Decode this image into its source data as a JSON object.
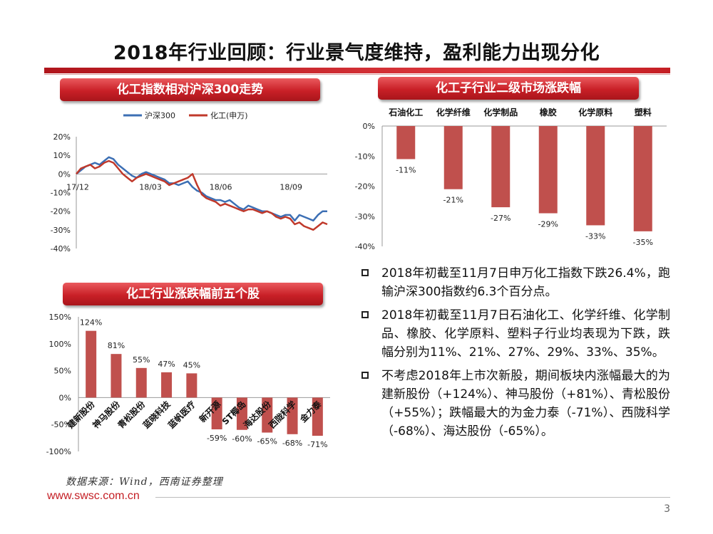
{
  "title": "2018年行业回顾：行业景气度维持，盈利能力出现分化",
  "colors": {
    "accent": "#c41e24",
    "hs300": "#3c6fb4",
    "chem": "#c0392b",
    "bar": "#c0504d"
  },
  "panels": {
    "index_title": "化工指数相对沪深300走势",
    "sub_title": "化工子行业二级市场涨跌幅",
    "top5_title": "化工行业涨跌幅前五个股"
  },
  "chart_data": [
    {
      "type": "line",
      "title": "化工指数相对沪深300走势",
      "legend": [
        "沪深300",
        "化工(申万)"
      ],
      "legend_position": "top",
      "y_ticks": [
        "20%",
        "10%",
        "0%",
        "-10%",
        "-20%",
        "-30%",
        "-40%"
      ],
      "x_ticks": [
        "17/12",
        "18/03",
        "18/06",
        "18/09"
      ],
      "ylim": [
        -40,
        20
      ],
      "series": [
        {
          "name": "沪深300",
          "values": [
            0,
            2,
            4,
            5,
            6,
            5,
            7,
            9,
            8,
            5,
            3,
            1,
            -1,
            -2,
            0,
            1,
            0,
            -1,
            -2,
            -3,
            -5,
            -5,
            -6,
            -5,
            -4,
            -7,
            -9,
            -10,
            -12,
            -13,
            -14,
            -14,
            -15,
            -14,
            -16,
            -18,
            -19,
            -17,
            -18,
            -19,
            -20,
            -20,
            -21,
            -22,
            -23,
            -22,
            -22,
            -25,
            -22,
            -23,
            -24,
            -25,
            -22,
            -20,
            -20
          ]
        },
        {
          "name": "化工(申万)",
          "values": [
            0,
            3,
            4,
            5,
            3,
            4,
            6,
            7,
            6,
            3,
            0,
            -2,
            -4,
            -2,
            -1,
            0,
            -1,
            -2,
            -3,
            -4,
            -6,
            -5,
            -4,
            -3,
            -2,
            0,
            -6,
            -11,
            -13,
            -14,
            -15,
            -17,
            -16,
            -17,
            -18,
            -19,
            -20,
            -19,
            -19,
            -20,
            -21,
            -20,
            -21,
            -23,
            -24,
            -23,
            -24,
            -27,
            -26,
            -28,
            -29,
            -30,
            -28,
            -26,
            -27
          ]
        }
      ]
    },
    {
      "type": "bar",
      "title": "化工子行业二级市场涨跌幅",
      "categories": [
        "石油化工",
        "化学纤维",
        "化学制品",
        "橡胶",
        "化学原料",
        "塑料"
      ],
      "values": [
        -11,
        -21,
        -27,
        -29,
        -33,
        -35
      ],
      "labels": [
        "-11%",
        "-21%",
        "-27%",
        "-29%",
        "-33%",
        "-35%"
      ],
      "y_ticks": [
        "0%",
        "-10%",
        "-20%",
        "-30%",
        "-40%"
      ],
      "ylim": [
        -40,
        0
      ]
    },
    {
      "type": "bar",
      "title": "化工行业涨跌幅前五个股",
      "categories": [
        "建新股份",
        "神马股份",
        "青松股份",
        "蓝晓科技",
        "蓝帆医疗",
        "新开源",
        "ST椰岛",
        "海达股份",
        "西陇科学",
        "金力泰"
      ],
      "values": [
        124,
        81,
        55,
        47,
        45,
        -59,
        -60,
        -65,
        -68,
        -71
      ],
      "labels": [
        "124%",
        "81%",
        "55%",
        "47%",
        "45%",
        "-59%",
        "-60%",
        "-65%",
        "-68%",
        "-71%"
      ],
      "y_ticks": [
        "150%",
        "100%",
        "50%",
        "0%",
        "-50%",
        "-100%"
      ],
      "ylim": [
        -100,
        150
      ]
    }
  ],
  "bullets": [
    "2018年初截至11月7日申万化工指数下跌26.4%，跑输沪深300指数约6.3个百分点。",
    "2018年初截至11月7日石油化工、化学纤维、化学制品、橡胶、化学原料、塑料子行业均表现为下跌，跌幅分别为11%、21%、27%、29%、33%、35%。",
    "不考虑2018年上市次新股，期间板块内涨幅最大的为建新股份（+124%）、神马股份（+81%）、青松股份（+55%）；跌幅最大的为金力泰（-71%）、西陇科学（-68%）、海达股份（-65%）。"
  ],
  "source": "数据来源：Wind，西南证券整理",
  "url": "www.swsc.com.cn",
  "page_number": "3"
}
